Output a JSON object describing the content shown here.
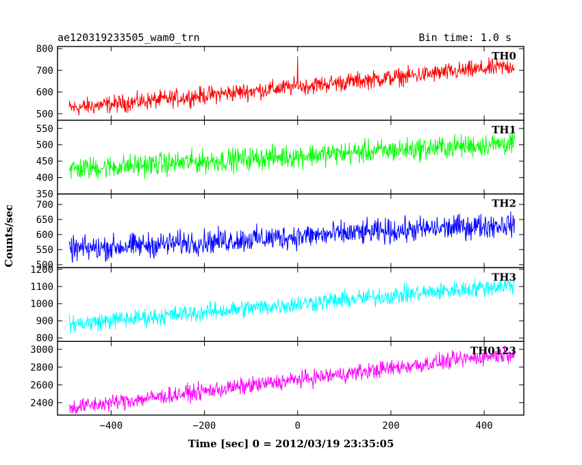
{
  "header": {
    "title": "ae120319233505_wam0_trn",
    "bin_time": "Bin time: 1.0 s"
  },
  "chart_data": {
    "type": "line",
    "xlabel": "Time [sec] 0 = 2012/03/19 23:35:05",
    "ylabel": "Counts/sec",
    "xlim": [
      -515,
      485
    ],
    "x_start": -490,
    "x_end": 465,
    "x_ticks": [
      -400,
      -200,
      0,
      200,
      400
    ],
    "x_tick_labels": [
      "−400",
      "−200",
      "0",
      "200",
      "400"
    ],
    "panels": [
      {
        "name": "TH0",
        "color": "#ff0000",
        "ylim": [
          470,
          810
        ],
        "yticks": [
          500,
          600,
          700,
          800
        ],
        "trend_start": 525,
        "trend_end": 720,
        "noise": 35,
        "spike_at_0": 765
      },
      {
        "name": "TH1",
        "color": "#00ff00",
        "ylim": [
          350,
          575
        ],
        "yticks": [
          350,
          400,
          450,
          500,
          550
        ],
        "trend_start": 425,
        "trend_end": 505,
        "noise": 30
      },
      {
        "name": "TH2",
        "color": "#0000ff",
        "ylim": [
          490,
          735
        ],
        "yticks": [
          500,
          550,
          600,
          650,
          700
        ],
        "trend_start": 550,
        "trend_end": 635,
        "noise": 35
      },
      {
        "name": "TH3",
        "color": "#00ffff",
        "ylim": [
          780,
          1210
        ],
        "yticks": [
          800,
          900,
          1000,
          1100,
          1200
        ],
        "trend_start": 880,
        "trend_end": 1110,
        "noise": 45
      },
      {
        "name": "TH0123",
        "color": "#ff00ff",
        "ylim": [
          2260,
          3090
        ],
        "yticks": [
          2400,
          2600,
          2800,
          3000
        ],
        "trend_start": 2340,
        "trend_end": 2960,
        "noise": 80,
        "spike_at_0": 2680
      }
    ]
  }
}
